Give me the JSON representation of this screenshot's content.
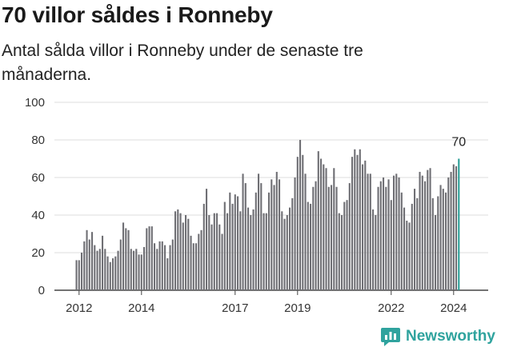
{
  "title": "70 villor såldes i Ronneby",
  "subtitle": "Antal sålda villor i Ronneby under de senaste tre månaderna.",
  "brand": {
    "name": "Newsworthy",
    "icon": "newsworthy-logo-icon",
    "color": "#2fa39e"
  },
  "chart_data": {
    "type": "bar",
    "title": "",
    "xlabel": "",
    "ylabel": "",
    "ylim": [
      0,
      100
    ],
    "yticks": [
      0,
      20,
      40,
      60,
      80,
      100
    ],
    "grid": true,
    "bar_color": "#6f6f74",
    "highlight_color": "#2a9d96",
    "start_year": 2011,
    "start_month": 12,
    "xticks": [
      {
        "label": "2012",
        "index": 1
      },
      {
        "label": "2014",
        "index": 25
      },
      {
        "label": "2017",
        "index": 61
      },
      {
        "label": "2019",
        "index": 85
      },
      {
        "label": "2022",
        "index": 121
      },
      {
        "label": "2024",
        "index": 145
      }
    ],
    "last_value_label": "70",
    "values": [
      16,
      16,
      20,
      26,
      32,
      27,
      31,
      24,
      21,
      22,
      29,
      22,
      18,
      15,
      17,
      18,
      21,
      27,
      36,
      33,
      32,
      22,
      21,
      22,
      19,
      19,
      23,
      33,
      34,
      34,
      25,
      22,
      26,
      26,
      24,
      17,
      24,
      27,
      42,
      43,
      41,
      36,
      40,
      38,
      29,
      25,
      25,
      30,
      32,
      46,
      54,
      40,
      35,
      41,
      41,
      35,
      30,
      47,
      41,
      52,
      46,
      51,
      50,
      42,
      62,
      57,
      44,
      40,
      43,
      52,
      62,
      57,
      41,
      41,
      52,
      59,
      56,
      63,
      59,
      42,
      38,
      40,
      44,
      49,
      60,
      71,
      80,
      72,
      62,
      47,
      46,
      55,
      58,
      74,
      70,
      67,
      65,
      55,
      56,
      65,
      55,
      41,
      40,
      47,
      48,
      57,
      71,
      75,
      72,
      75,
      67,
      69,
      62,
      62,
      43,
      40,
      55,
      58,
      60,
      55,
      59,
      48,
      61,
      62,
      60,
      52,
      44,
      37,
      36,
      46,
      54,
      49,
      63,
      61,
      58,
      64,
      65,
      49,
      40,
      50,
      56,
      54,
      52,
      60,
      63,
      67,
      66,
      70
    ]
  }
}
